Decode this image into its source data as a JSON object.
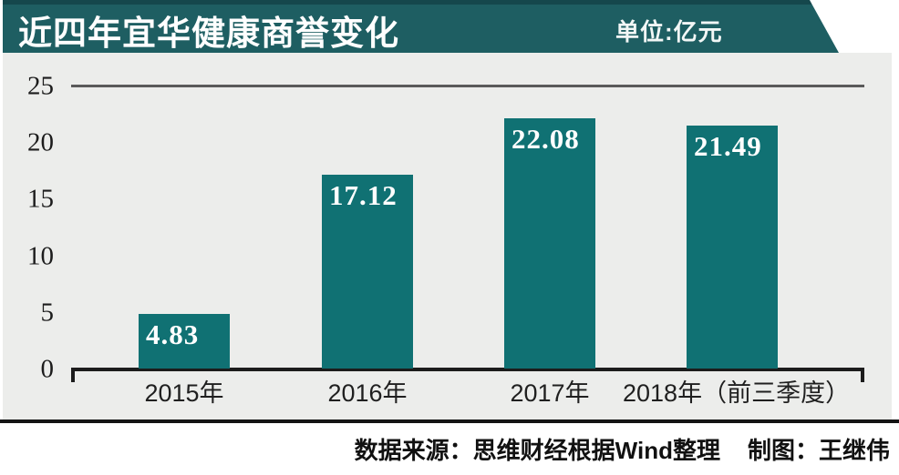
{
  "header": {
    "title": "近四年宜华健康商誉变化",
    "unit_label": "单位:亿元"
  },
  "chart_data": {
    "type": "bar",
    "title": "近四年宜华健康商誉变化",
    "unit": "亿元",
    "categories": [
      "2015年",
      "2016年",
      "2017年",
      "2018年（前三季度）"
    ],
    "values": [
      4.83,
      17.12,
      22.08,
      21.49
    ],
    "value_labels": [
      "4.83",
      "17.12",
      "22.08",
      "21.49"
    ],
    "ylim": [
      0,
      25
    ],
    "yticks": [
      25,
      20,
      15,
      10,
      5,
      0
    ],
    "grid": "single horizontal line at y=25 only",
    "legend": "none",
    "bar_color": "#107173",
    "plot_background": "#ecedeb"
  },
  "footer": {
    "source": "数据来源：思维财经根据Wind整理",
    "credit": "制图：王继伟"
  },
  "colors": {
    "banner": "#1e5e62",
    "banner_top_edge": "#15474c",
    "bar": "#107173",
    "axis": "#1c1c1c",
    "gridline": "#5a5a5a",
    "plot_bg": "#ecedeb"
  }
}
